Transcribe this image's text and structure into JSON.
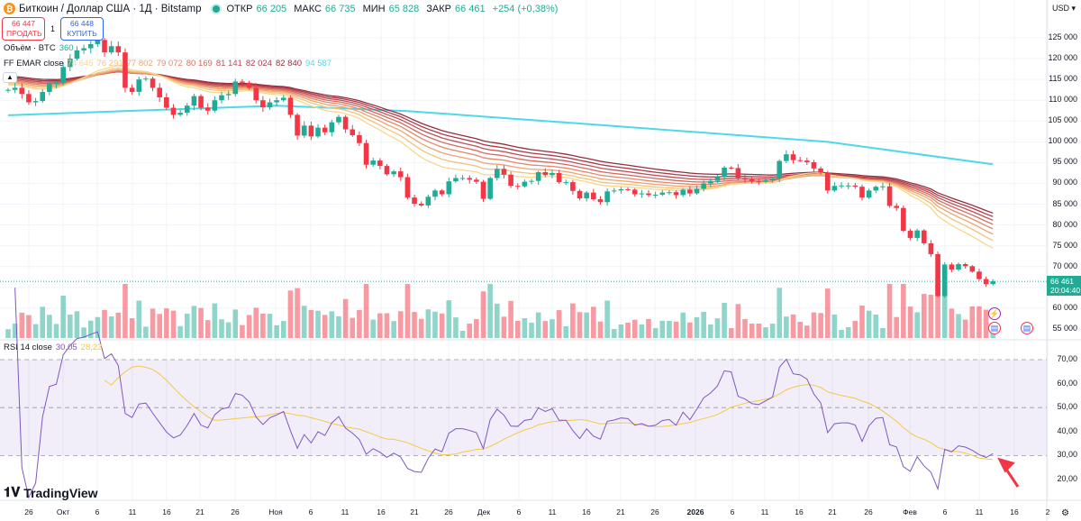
{
  "header": {
    "symbol_title": "Биткоин / Доллар США · 1Д · Bitstamp",
    "open_label": "ОТКР",
    "open": "66 205",
    "high_label": "МАКС",
    "high": "66 735",
    "low_label": "МИН",
    "low": "65 828",
    "close_label": "ЗАКР",
    "close": "66 461",
    "change": "+254 (+0,38%)"
  },
  "trade": {
    "sell_price": "66 447",
    "sell_label": "ПРОДАТЬ",
    "spread": "1",
    "buy_price": "66 448",
    "buy_label": "КУПИТЬ"
  },
  "volume_legend": {
    "label": "Объём · BTC",
    "value": "360"
  },
  "ema_legend": {
    "label": "FF EMAR close",
    "values": [
      "74 645",
      "76 291",
      "77 802",
      "79 072",
      "80 169",
      "81 141",
      "82 024",
      "82 840",
      "94 587"
    ],
    "colors": [
      "#f6d78c",
      "#f3c27c",
      "#efa46f",
      "#e38767",
      "#d46a5e",
      "#c24f55",
      "#ac3a49",
      "#962d3e",
      "#4dd9e8"
    ]
  },
  "rsi_legend": {
    "label": "RSI 14 close",
    "value": "30,05",
    "ma_value": "28,23"
  },
  "currency": "USD",
  "price_axis": [
    "125 000",
    "120 000",
    "115 000",
    "110 000",
    "105 000",
    "100 000",
    "95 000",
    "90 000",
    "85 000",
    "80 000",
    "75 000",
    "70 000",
    "60 000",
    "55 000"
  ],
  "last_price": {
    "value": "66 461",
    "countdown": "20:04:40"
  },
  "rsi_axis": [
    "70,00",
    "60,00",
    "50,00",
    "40,00",
    "30,00",
    "20,00"
  ],
  "time_axis": [
    "26",
    "Окт",
    "6",
    "11",
    "16",
    "21",
    "26",
    "Ноя",
    "6",
    "11",
    "16",
    "21",
    "26",
    "Дек",
    "6",
    "11",
    "16",
    "21",
    "26",
    "2026",
    "6",
    "11",
    "16",
    "21",
    "26",
    "Фев",
    "6",
    "11",
    "16",
    "2"
  ],
  "brand": "TradingView",
  "colors": {
    "up": "#22ab94",
    "down": "#f23645",
    "rsi": "#7e57c2",
    "rsi_ma": "#f5c847",
    "ema200": "#4dd9e8"
  },
  "chart_data": {
    "type": "candlestick",
    "start_date": "2025-09-23",
    "closes": [
      112.5,
      113,
      111.5,
      109.5,
      109.8,
      112,
      114,
      114.2,
      118,
      120,
      122,
      122.5,
      123.5,
      124.5,
      121.5,
      123,
      121.5,
      113,
      112,
      115,
      115.2,
      113,
      110.7,
      108.2,
      106.5,
      107,
      108.7,
      111,
      108.2,
      107.5,
      110,
      111.2,
      111.5,
      114.5,
      114.2,
      113,
      110,
      108.3,
      109.5,
      110,
      110.6,
      106.5,
      101.5,
      103.9,
      101.3,
      103.4,
      102.3,
      104.7,
      106,
      103,
      101.6,
      99.7,
      94.5,
      95.5,
      94.2,
      92.2,
      92.9,
      91.5,
      86.6,
      85.1,
      84.7,
      86.8,
      88.3,
      87.4,
      90.5,
      91.3,
      91.3,
      90.9,
      90.4,
      86.3,
      91.3,
      93.5,
      92.1,
      89.4,
      89.3,
      90.4,
      90.6,
      92.7,
      92.0,
      92.5,
      90.3,
      90.3,
      88.2,
      86.4,
      87.8,
      86.2,
      85.5,
      88.1,
      88.3,
      88.6,
      88.5,
      87.4,
      87.6,
      87.2,
      87.3,
      87.8,
      87.9,
      87.2,
      88.5,
      87.6,
      88.7,
      90.0,
      90.6,
      91.5,
      93.8,
      93.7,
      91.3,
      91.0,
      90.5,
      90.4,
      90.8,
      91.2,
      95.4,
      97.0,
      95.6,
      95.5,
      95.1,
      93.6,
      92.6,
      88.3,
      89.4,
      89.5,
      89.5,
      89.2,
      86.6,
      88.3,
      89.2,
      89.3,
      84.6,
      84.1,
      78.6,
      76.9,
      78.7,
      75.6,
      73.0,
      62.9,
      70.5,
      69.3,
      70.6,
      70.1,
      68.8,
      67.0,
      65.8,
      66.46
    ],
    "close_unit": "thousand USD",
    "ema200": [
      [
        "2025-09-23",
        106.4
      ],
      [
        "2025-11-01",
        108.7
      ],
      [
        "2025-11-20",
        107.4
      ],
      [
        "2025-12-15",
        104.4
      ],
      [
        "2026-01-20",
        100
      ],
      [
        "2026-02-13",
        94.6
      ]
    ],
    "ema_ribbon_periods": [
      20,
      25,
      30,
      35,
      40,
      45,
      50,
      55
    ],
    "rsi_period": 14,
    "price_range": [
      55000,
      125000
    ],
    "rsi_range": [
      20,
      70
    ],
    "rsi_levels": [
      70,
      50,
      30
    ]
  }
}
